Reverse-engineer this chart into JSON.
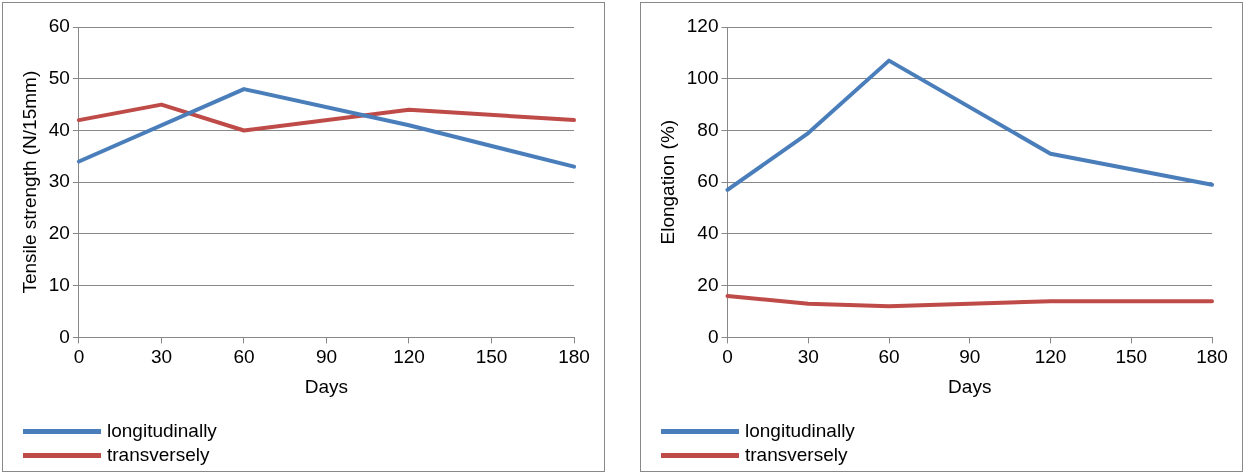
{
  "chart_data": [
    {
      "type": "line",
      "xlabel": "Days",
      "ylabel": "Tensile strength (N/15mm)",
      "xlim": [
        0,
        180
      ],
      "xticks": [
        0,
        30,
        60,
        90,
        120,
        150,
        180
      ],
      "ylim": [
        0,
        60
      ],
      "yticks": [
        0,
        10,
        20,
        30,
        40,
        50,
        60
      ],
      "grid": "y",
      "legend": "bottom left",
      "marker": "none",
      "line_style": "solid",
      "series": [
        {
          "name": "longitudinally",
          "color": "#4a7ebb",
          "x": [
            0,
            60,
            120,
            180
          ],
          "values": [
            34,
            48,
            41,
            33
          ]
        },
        {
          "name": "transversely",
          "color": "#be4b48",
          "x": [
            0,
            30,
            60,
            120,
            180
          ],
          "values": [
            42,
            45,
            40,
            44,
            42
          ]
        }
      ]
    },
    {
      "type": "line",
      "xlabel": "Days",
      "ylabel": "Elongation (%)",
      "xlim": [
        0,
        180
      ],
      "xticks": [
        0,
        30,
        60,
        90,
        120,
        150,
        180
      ],
      "ylim": [
        0,
        120
      ],
      "yticks": [
        0,
        20,
        40,
        60,
        80,
        100,
        120
      ],
      "grid": "y",
      "legend": "bottom left",
      "marker": "none",
      "line_style": "solid",
      "series": [
        {
          "name": "longitudinally",
          "color": "#4a7ebb",
          "x": [
            0,
            30,
            60,
            120,
            180
          ],
          "values": [
            57,
            79,
            107,
            71,
            59
          ]
        },
        {
          "name": "transversely",
          "color": "#be4b48",
          "x": [
            0,
            30,
            60,
            120,
            180
          ],
          "values": [
            16,
            13,
            12,
            14,
            14
          ]
        }
      ]
    }
  ]
}
